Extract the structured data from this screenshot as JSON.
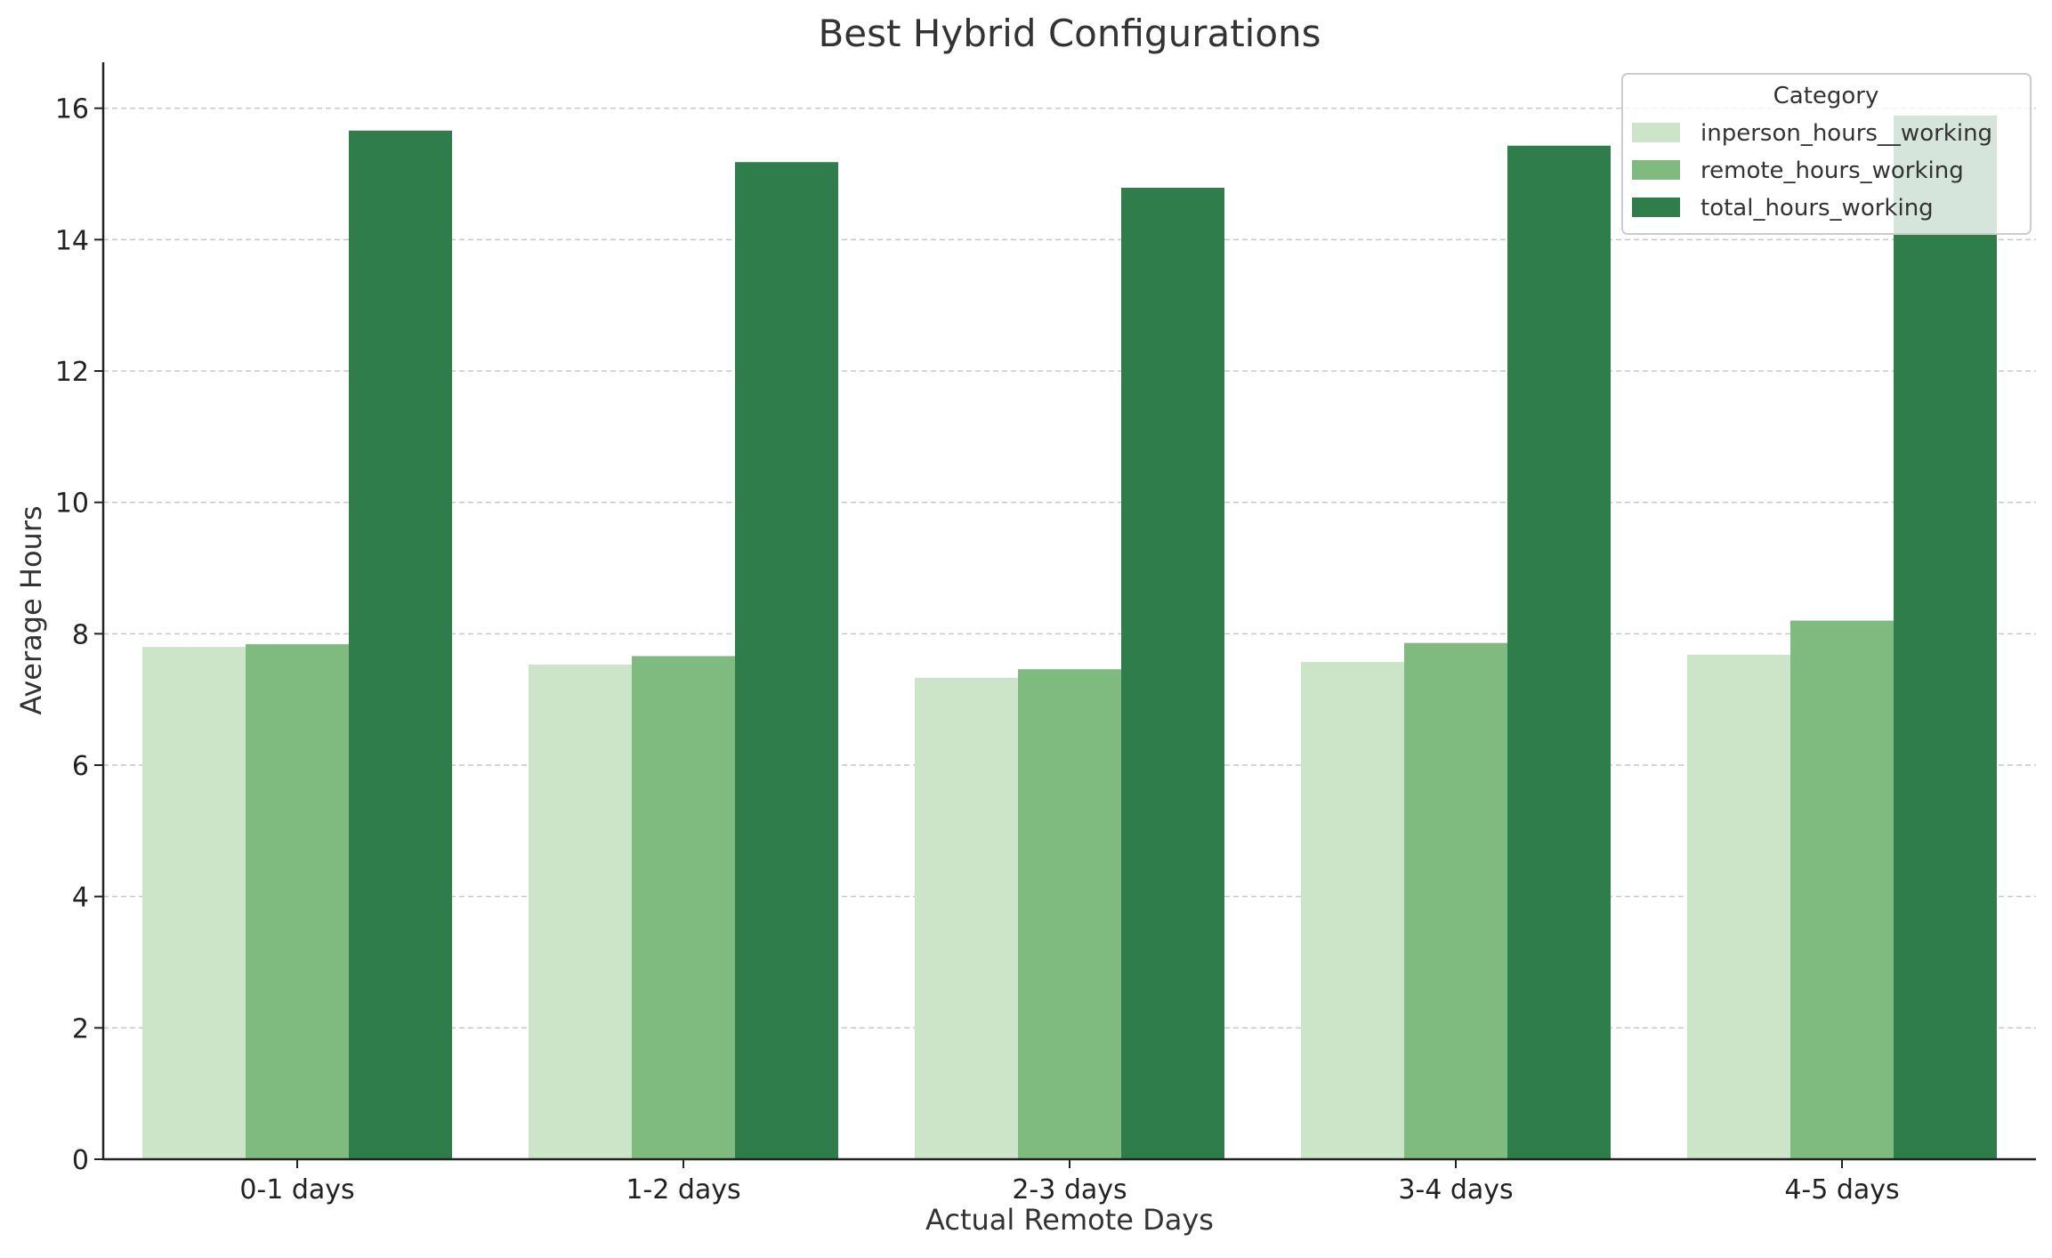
{
  "chart_data": {
    "type": "bar",
    "title": "Best Hybrid Configurations",
    "xlabel": "Actual Remote Days",
    "ylabel": "Average Hours",
    "categories": [
      "0-1 days",
      "1-2 days",
      "2-3 days",
      "3-4 days",
      "4-5 days"
    ],
    "series": [
      {
        "name": "inperson_hours__working",
        "color": "#cce5c8",
        "values": [
          7.8,
          7.53,
          7.33,
          7.57,
          7.68
        ]
      },
      {
        "name": "remote_hours_working",
        "color": "#7fba7e",
        "values": [
          7.84,
          7.66,
          7.46,
          7.86,
          8.2
        ]
      },
      {
        "name": "total_hours_working",
        "color": "#2e7d4a",
        "values": [
          15.66,
          15.18,
          14.79,
          15.43,
          15.89
        ]
      }
    ],
    "ylim": [
      0,
      16.7
    ],
    "yticks": [
      "0",
      "2",
      "4",
      "6",
      "8",
      "10",
      "12",
      "14",
      "16"
    ],
    "ytick_values": [
      0,
      2,
      4,
      6,
      8,
      10,
      12,
      14,
      16
    ],
    "grid": "y-dashed",
    "legend": {
      "title": "Category",
      "placement": "top-right"
    }
  }
}
